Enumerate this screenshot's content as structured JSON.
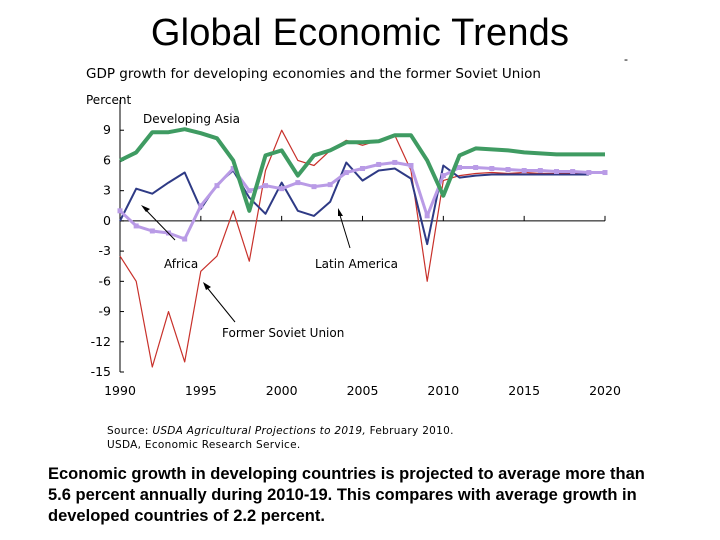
{
  "slide": {
    "title": "Global Economic Trends",
    "corner_mark": "-"
  },
  "source": {
    "line1_prefix": "Source: ",
    "line1_italic": "USDA Agricultural Projections to 2019,",
    "line1_suffix": " February 2010.",
    "line2": "USDA, Economic Research Service."
  },
  "caption": "Economic growth in developing countries is projected to average more than 5.6 percent annually during 2010-19. This compares with average growth in developed countries of 2.2 percent.",
  "chart_data": {
    "type": "line",
    "title": "GDP growth for developing economies and the former Soviet Union",
    "ylabel": "Percent",
    "xlabel": "",
    "xlim": [
      1990,
      2020
    ],
    "ylim": [
      -15,
      12
    ],
    "x_ticks": [
      1990,
      1995,
      2000,
      2005,
      2010,
      2015,
      2020
    ],
    "y_ticks": [
      9,
      6,
      3,
      0,
      -3,
      -6,
      -9,
      -12,
      -15
    ],
    "annotations": [
      {
        "text": "Developing Asia",
        "series": "Developing Asia"
      },
      {
        "text": "Africa",
        "series": "Africa"
      },
      {
        "text": "Latin America",
        "series": "Latin America"
      },
      {
        "text": "Former Soviet Union",
        "series": "Former Soviet Union"
      }
    ],
    "series": [
      {
        "name": "Former Soviet Union",
        "color": "#c8312b",
        "x": [
          1990,
          1991,
          1992,
          1993,
          1994,
          1995,
          1996,
          1997,
          1998,
          1999,
          2000,
          2001,
          2002,
          2003,
          2004,
          2005,
          2006,
          2007,
          2008,
          2009,
          2010,
          2011,
          2012,
          2013,
          2014,
          2015,
          2016,
          2017,
          2018,
          2019
        ],
        "y": [
          -3.5,
          -6,
          -14.5,
          -9,
          -14,
          -5,
          -3.5,
          1,
          -4,
          5,
          9,
          6,
          5.5,
          7,
          8,
          7.5,
          8,
          8.5,
          5,
          -6,
          4,
          4.5,
          4.7,
          4.8,
          4.7,
          4.8,
          4.7,
          4.7,
          4.7,
          4.7
        ]
      },
      {
        "name": "Latin America",
        "color": "#2e3a85",
        "x": [
          1990,
          1991,
          1992,
          1993,
          1994,
          1995,
          1996,
          1997,
          1998,
          1999,
          2000,
          2001,
          2002,
          2003,
          2004,
          2005,
          2006,
          2007,
          2008,
          2009,
          2010,
          2011,
          2012,
          2013,
          2014,
          2015,
          2016,
          2017,
          2018,
          2019
        ],
        "y": [
          0,
          3.2,
          2.7,
          3.8,
          4.8,
          1.2,
          3.6,
          5,
          2.3,
          0.7,
          3.8,
          1.0,
          0.5,
          1.9,
          5.8,
          4.0,
          5.0,
          5.2,
          4.2,
          -2.3,
          5.5,
          4.3,
          4.5,
          4.6,
          4.6,
          4.6,
          4.6,
          4.6,
          4.6,
          4.6
        ]
      },
      {
        "name": "Africa",
        "color": "#b99be6",
        "x": [
          1990,
          1991,
          1992,
          1993,
          1994,
          1995,
          1996,
          1997,
          1998,
          1999,
          2000,
          2001,
          2002,
          2003,
          2004,
          2005,
          2006,
          2007,
          2008,
          2009,
          2010,
          2011,
          2012,
          2013,
          2014,
          2015,
          2016,
          2017,
          2018,
          2019,
          2020
        ],
        "y": [
          1.0,
          -0.5,
          -1.0,
          -1.2,
          -1.8,
          1.5,
          3.5,
          5.2,
          3.0,
          3.5,
          3.2,
          3.8,
          3.4,
          3.6,
          4.8,
          5.2,
          5.6,
          5.8,
          5.5,
          0.5,
          4.5,
          5.3,
          5.3,
          5.2,
          5.1,
          5.0,
          5.0,
          4.9,
          4.9,
          4.8,
          4.8
        ]
      },
      {
        "name": "Developing Asia",
        "color": "#3f9b62",
        "x": [
          1990,
          1991,
          1992,
          1993,
          1994,
          1995,
          1996,
          1997,
          1998,
          1999,
          2000,
          2001,
          2002,
          2003,
          2004,
          2005,
          2006,
          2007,
          2008,
          2009,
          2010,
          2011,
          2012,
          2013,
          2014,
          2015,
          2016,
          2017,
          2018,
          2019,
          2020
        ],
        "y": [
          6,
          6.8,
          8.8,
          8.8,
          9.1,
          8.7,
          8.2,
          6,
          1,
          6.5,
          7,
          4.5,
          6.5,
          7,
          7.8,
          7.8,
          7.9,
          8.5,
          8.5,
          6,
          2.5,
          6.5,
          7.2,
          7.1,
          7.0,
          6.8,
          6.7,
          6.6,
          6.6,
          6.6,
          6.6
        ]
      }
    ]
  }
}
